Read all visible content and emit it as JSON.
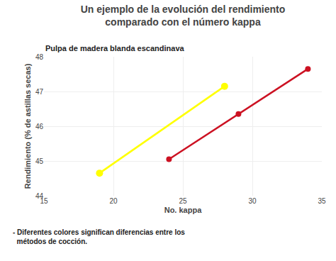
{
  "chart_data": {
    "type": "line",
    "title": "Un ejemplo de la evolución del rendimiento\ncomparado con el número kappa",
    "subtitle": "Pulpa de madera blanda escandinava",
    "xlabel": "No. kappa",
    "ylabel": "Rendimiento (% de astillas secas)",
    "annotations": [
      {
        "text": "- Diferentes colores significan diferencias entre los\n  métodos de cocción."
      }
    ],
    "xlim": [
      15,
      35
    ],
    "ylim": [
      44,
      48
    ],
    "xticks": [
      15,
      20,
      25,
      30,
      35
    ],
    "yticks": [
      44,
      45,
      46,
      47,
      48
    ],
    "grid": true,
    "series": [
      {
        "color": "#FFFF00",
        "marker": "circle",
        "line_style": "solid",
        "x": [
          19,
          28
        ],
        "values": [
          44.65,
          47.15
        ]
      },
      {
        "color": "#CC1122",
        "marker": "circle",
        "line_style": "solid",
        "x": [
          24,
          29,
          34
        ],
        "values": [
          45.05,
          46.35,
          47.65
        ]
      }
    ]
  }
}
